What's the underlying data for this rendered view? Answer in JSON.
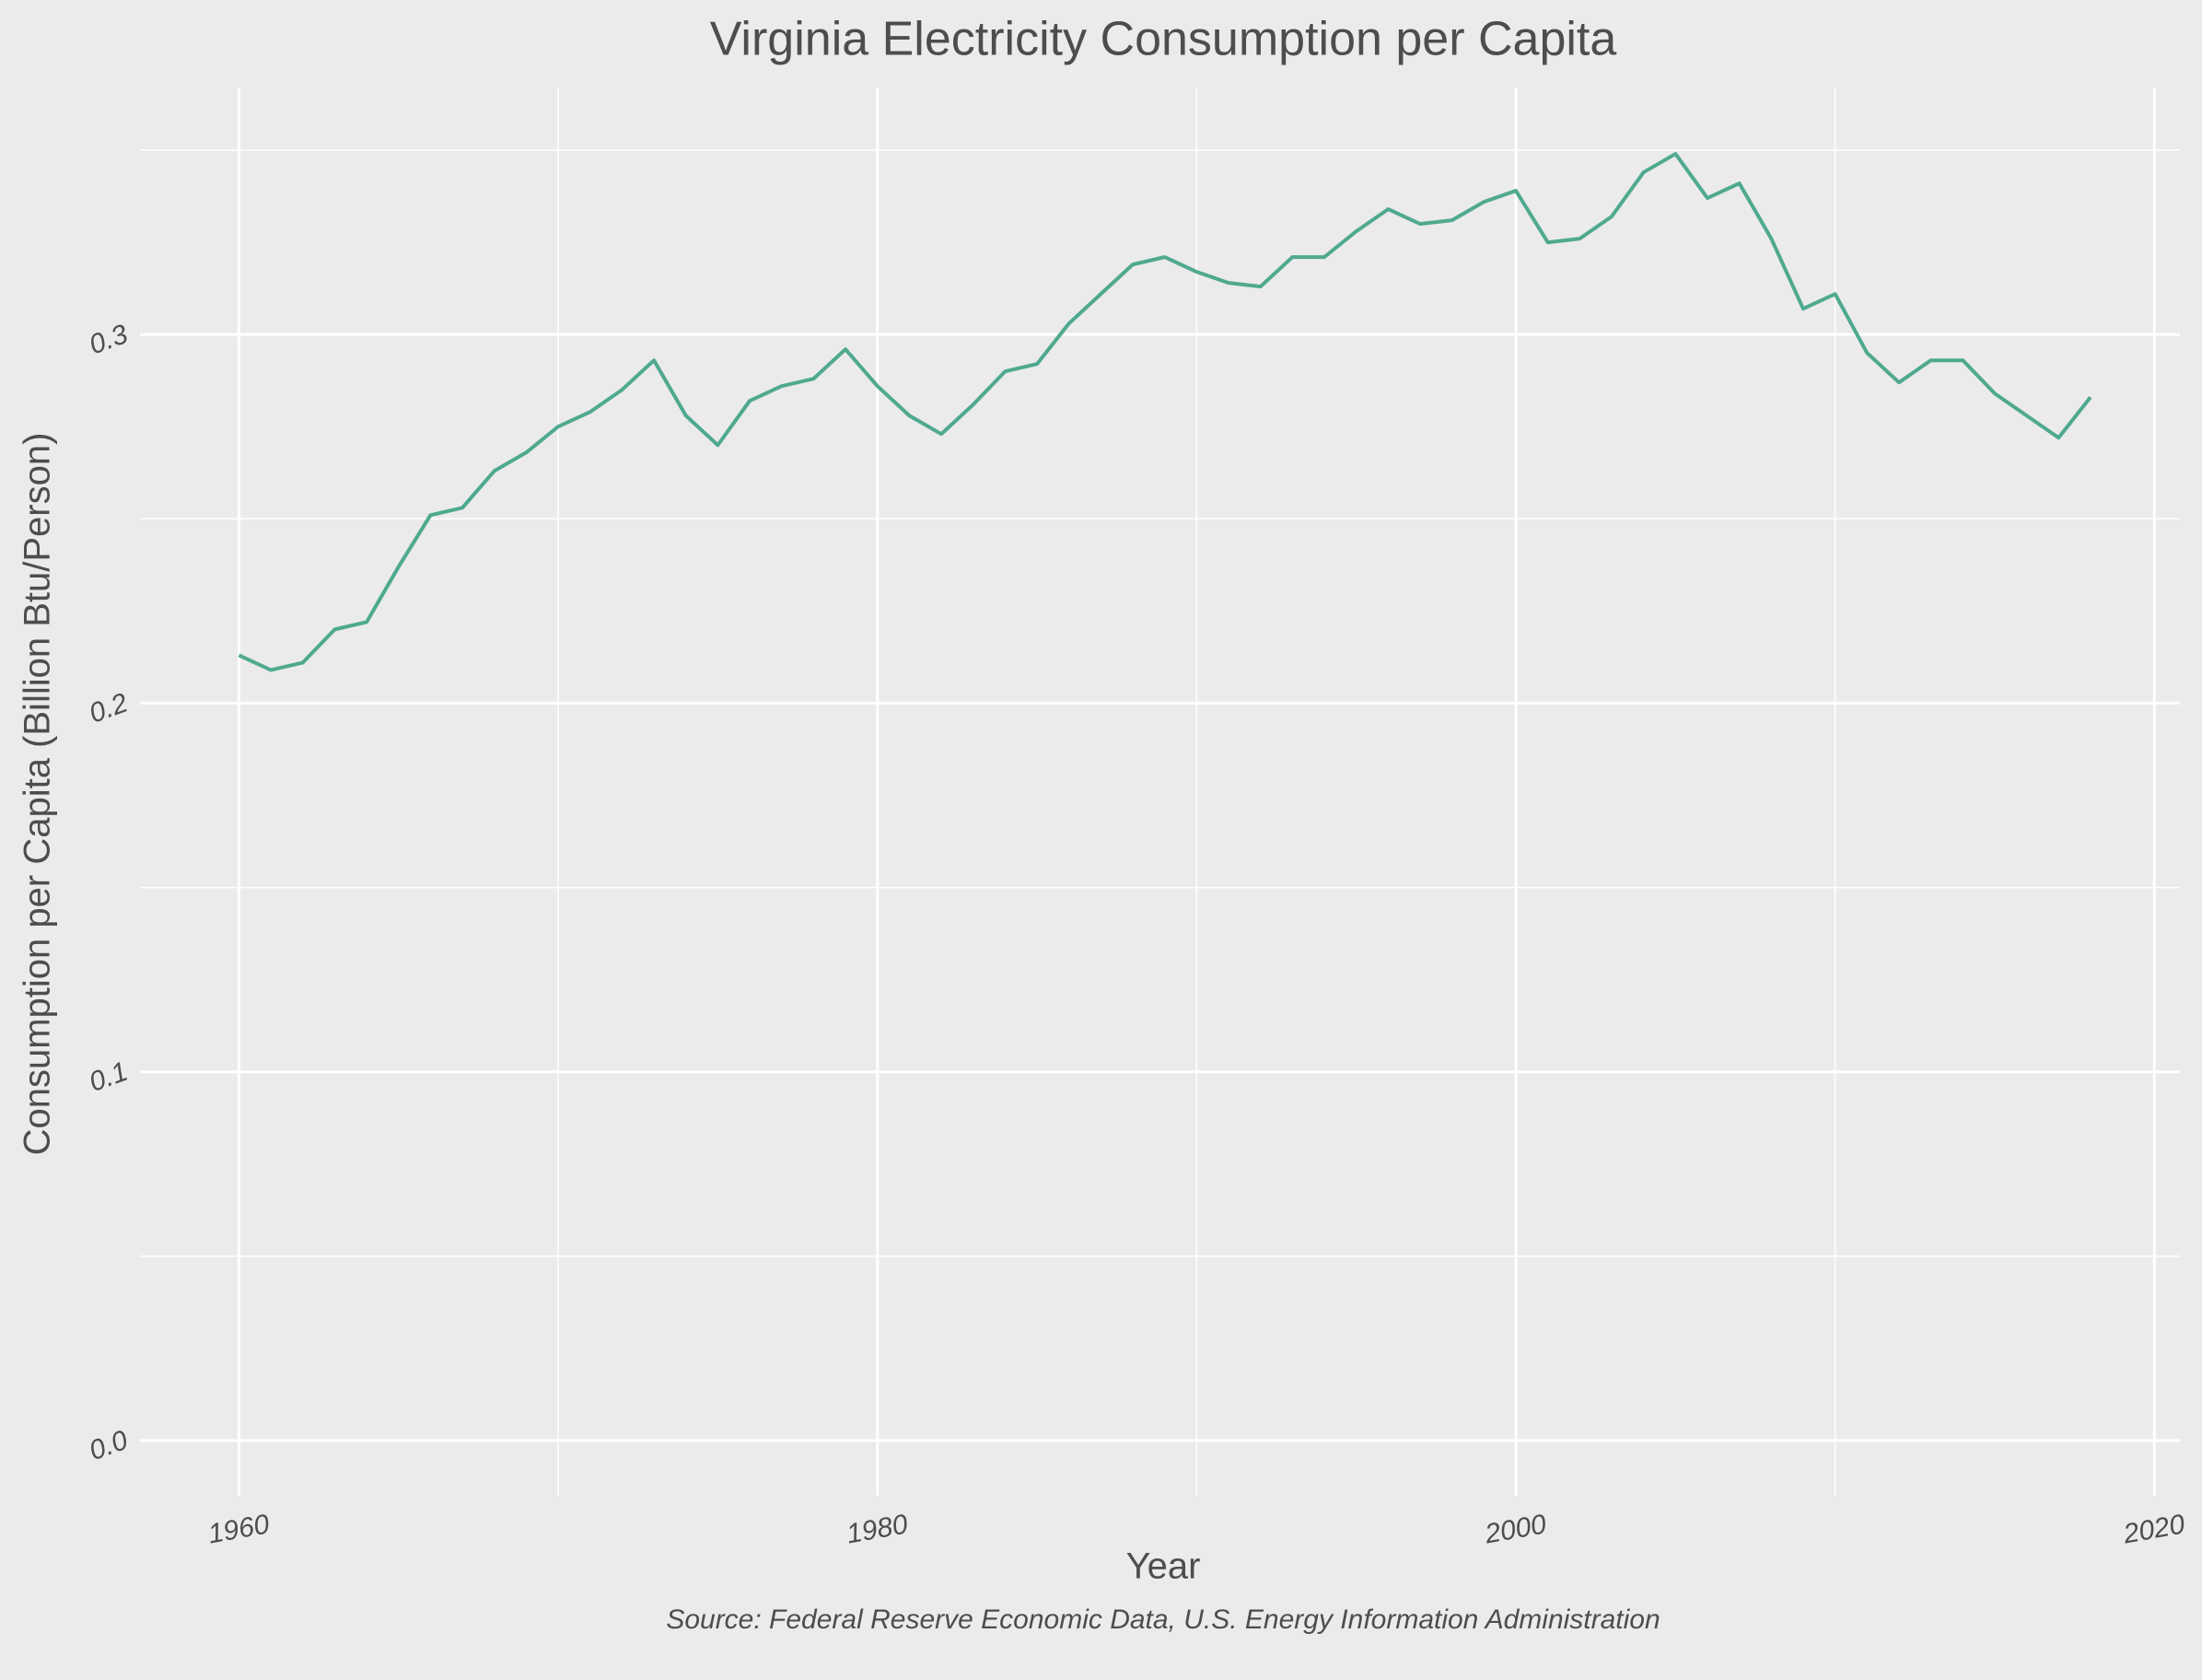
{
  "chart_data": {
    "type": "line",
    "title": "Virginia Electricity Consumption per Capita",
    "x_label": "Year",
    "y_label": "Consumption per Capita (Billion Btu/Person)",
    "caption": "Source: Federal Reserve Economic Data, U.S. Energy Information Administration",
    "x": [
      1960,
      1961,
      1962,
      1963,
      1964,
      1965,
      1966,
      1967,
      1968,
      1969,
      1970,
      1971,
      1972,
      1973,
      1974,
      1975,
      1976,
      1977,
      1978,
      1979,
      1980,
      1981,
      1982,
      1983,
      1984,
      1985,
      1986,
      1987,
      1988,
      1989,
      1990,
      1991,
      1992,
      1993,
      1994,
      1995,
      1996,
      1997,
      1998,
      1999,
      2000,
      2001,
      2002,
      2003,
      2004,
      2005,
      2006,
      2007,
      2008,
      2009,
      2010,
      2011,
      2012,
      2013,
      2014,
      2015,
      2016,
      2017,
      2018
    ],
    "series": [
      {
        "name": "Virginia",
        "color": "#4fa98f",
        "values": [
          0.213,
          0.209,
          0.211,
          0.22,
          0.222,
          0.237,
          0.251,
          0.253,
          0.263,
          0.268,
          0.275,
          0.279,
          0.285,
          0.293,
          0.278,
          0.27,
          0.282,
          0.286,
          0.288,
          0.296,
          0.286,
          0.278,
          0.273,
          0.281,
          0.29,
          0.292,
          0.303,
          0.311,
          0.319,
          0.321,
          0.317,
          0.314,
          0.313,
          0.321,
          0.321,
          0.328,
          0.334,
          0.33,
          0.331,
          0.336,
          0.339,
          0.325,
          0.326,
          0.332,
          0.344,
          0.349,
          0.337,
          0.341,
          0.326,
          0.307,
          0.311,
          0.295,
          0.287,
          0.293,
          0.293,
          0.284,
          0.278,
          0.272,
          0.283
        ]
      }
    ],
    "xlim": [
      1956.9,
      2020.8
    ],
    "ylim": [
      -0.015,
      0.367
    ],
    "xticks": [
      1960,
      1980,
      2000,
      2020
    ],
    "yticks": [
      {
        "value": 0,
        "label": "0.0"
      },
      0.1,
      0.2,
      0.3
    ],
    "grid": true
  }
}
